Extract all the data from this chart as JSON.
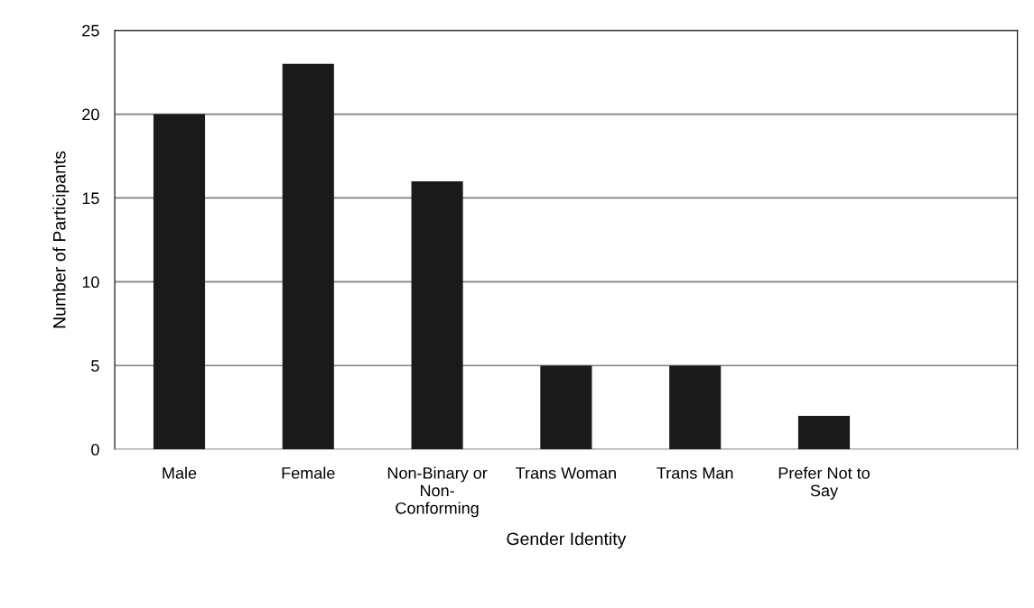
{
  "chart_data": {
    "type": "bar",
    "xlabel": "Gender Identity",
    "ylabel": "Number of Participants",
    "categories": [
      "Male",
      "Female",
      "Non-Binary or\nNon-\nConforming",
      "Trans Woman",
      "Trans Man",
      "Prefer Not to\nSay",
      null
    ],
    "values": [
      20,
      23,
      16,
      5,
      5,
      2,
      null
    ],
    "color": "#1a1a1a",
    "ylim": [
      0,
      25
    ],
    "yticks": [
      0,
      5,
      10,
      15,
      20,
      25
    ],
    "grid": "y"
  }
}
